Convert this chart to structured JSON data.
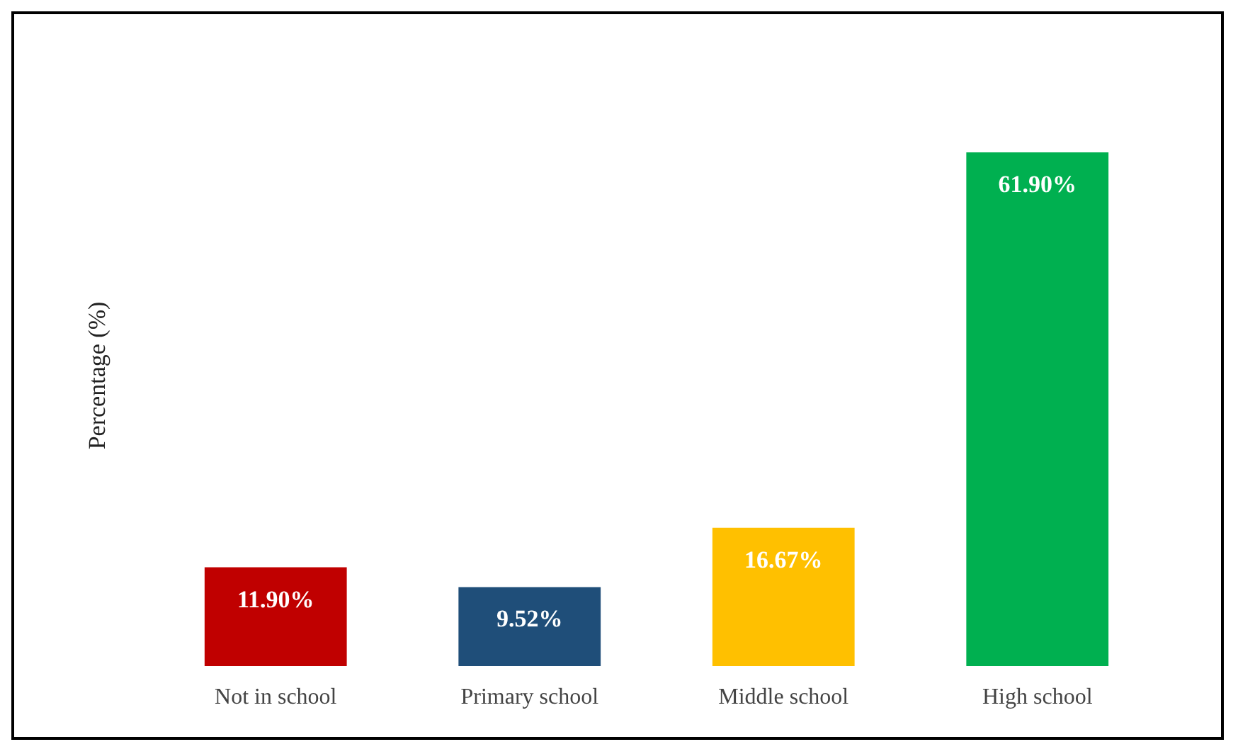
{
  "chart_data": {
    "type": "bar",
    "ylabel": "Percentage (%)",
    "categories": [
      "Not in school",
      "Primary school",
      "Middle school",
      "High school"
    ],
    "values": [
      11.9,
      9.52,
      16.67,
      61.9
    ],
    "colors": [
      "#c00000",
      "#1f4e79",
      "#ffc000",
      "#00b050"
    ],
    "value_labels": [
      "11.90%",
      "9.52%",
      "16.67%",
      "61.90%"
    ]
  }
}
